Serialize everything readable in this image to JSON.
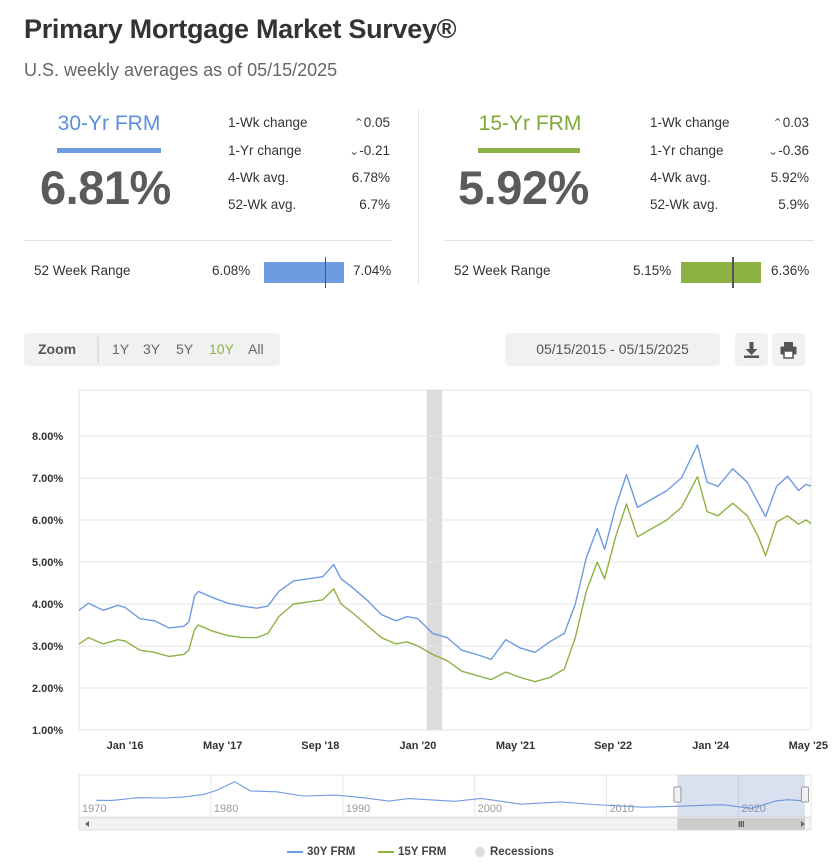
{
  "header": {
    "title": "Primary Mortgage Market Survey®",
    "subtitle": "U.S. weekly averages as of 05/15/2025"
  },
  "colors": {
    "frm30": "#6f9be0",
    "frm15": "#8db244",
    "recession": "#dcdcdc"
  },
  "frm30": {
    "label": "30-Yr FRM",
    "rate": "6.81%",
    "one_wk_change_label": "1-Wk change",
    "one_wk_change": "0.05",
    "one_wk_direction": "up",
    "one_yr_change_label": "1-Yr change",
    "one_yr_change": "-0.21",
    "one_yr_direction": "down",
    "four_wk_label": "4-Wk avg.",
    "four_wk": "6.78%",
    "fifty_two_wk_label": "52-Wk avg.",
    "fifty_two_wk": "6.7%",
    "range_label": "52 Week Range",
    "range_low": "6.08%",
    "range_high": "7.04%",
    "range_current_fraction": 0.76
  },
  "frm15": {
    "label": "15-Yr FRM",
    "rate": "5.92%",
    "one_wk_change_label": "1-Wk change",
    "one_wk_change": "0.03",
    "one_wk_direction": "up",
    "one_yr_change_label": "1-Yr change",
    "one_yr_change": "-0.36",
    "one_yr_direction": "down",
    "four_wk_label": "4-Wk avg.",
    "four_wk": "5.92%",
    "fifty_two_wk_label": "52-Wk avg.",
    "fifty_two_wk": "5.9%",
    "range_label": "52 Week Range",
    "range_low": "5.15%",
    "range_high": "6.36%",
    "range_current_fraction": 0.64
  },
  "toolbar": {
    "zoom_label": "Zoom",
    "zoom_options": [
      "1Y",
      "3Y",
      "5Y",
      "10Y",
      "All"
    ],
    "zoom_selected": "10Y",
    "date_range": "05/15/2015 - 05/15/2025",
    "download_icon": "download-icon",
    "print_icon": "print-icon"
  },
  "chart_data": {
    "type": "line",
    "x_start": "2015-05",
    "x_end": "2025-05",
    "y_tick_labels": [
      "1.00%",
      "2.00%",
      "3.00%",
      "4.00%",
      "5.00%",
      "6.00%",
      "7.00%",
      "8.00%"
    ],
    "y_ticks": [
      1,
      2,
      3,
      4,
      5,
      6,
      7,
      8
    ],
    "ylim": [
      1,
      9
    ],
    "x_tick_labels": [
      "Jan '16",
      "May '17",
      "Sep '18",
      "Jan '20",
      "May '21",
      "Sep '22",
      "Jan '24",
      "May '25"
    ],
    "x_ticks": [
      2016.0,
      2017.333,
      2018.667,
      2020.0,
      2021.333,
      2022.667,
      2024.0,
      2025.333
    ],
    "grid": true,
    "legend_position": "bottom",
    "recessions": [
      {
        "start": 2020.12,
        "end": 2020.33
      }
    ],
    "series": [
      {
        "name": "30Y FRM",
        "points": [
          [
            2015.37,
            3.85
          ],
          [
            2015.5,
            4.02
          ],
          [
            2015.7,
            3.85
          ],
          [
            2015.9,
            3.97
          ],
          [
            2016.0,
            3.92
          ],
          [
            2016.2,
            3.65
          ],
          [
            2016.4,
            3.6
          ],
          [
            2016.6,
            3.43
          ],
          [
            2016.8,
            3.47
          ],
          [
            2016.87,
            3.57
          ],
          [
            2016.95,
            4.2
          ],
          [
            2017.0,
            4.3
          ],
          [
            2017.2,
            4.15
          ],
          [
            2017.4,
            4.02
          ],
          [
            2017.6,
            3.95
          ],
          [
            2017.8,
            3.9
          ],
          [
            2017.95,
            3.95
          ],
          [
            2018.1,
            4.3
          ],
          [
            2018.3,
            4.55
          ],
          [
            2018.5,
            4.6
          ],
          [
            2018.7,
            4.65
          ],
          [
            2018.85,
            4.94
          ],
          [
            2018.95,
            4.6
          ],
          [
            2019.1,
            4.4
          ],
          [
            2019.3,
            4.1
          ],
          [
            2019.5,
            3.75
          ],
          [
            2019.7,
            3.6
          ],
          [
            2019.85,
            3.7
          ],
          [
            2020.0,
            3.65
          ],
          [
            2020.2,
            3.3
          ],
          [
            2020.4,
            3.2
          ],
          [
            2020.6,
            2.9
          ],
          [
            2020.8,
            2.8
          ],
          [
            2021.0,
            2.68
          ],
          [
            2021.2,
            3.15
          ],
          [
            2021.4,
            2.95
          ],
          [
            2021.6,
            2.85
          ],
          [
            2021.8,
            3.1
          ],
          [
            2022.0,
            3.3
          ],
          [
            2022.15,
            4.0
          ],
          [
            2022.3,
            5.1
          ],
          [
            2022.45,
            5.8
          ],
          [
            2022.55,
            5.3
          ],
          [
            2022.7,
            6.3
          ],
          [
            2022.85,
            7.08
          ],
          [
            2023.0,
            6.3
          ],
          [
            2023.2,
            6.5
          ],
          [
            2023.4,
            6.7
          ],
          [
            2023.6,
            7.0
          ],
          [
            2023.82,
            7.79
          ],
          [
            2023.95,
            6.9
          ],
          [
            2024.1,
            6.8
          ],
          [
            2024.3,
            7.22
          ],
          [
            2024.5,
            6.9
          ],
          [
            2024.65,
            6.4
          ],
          [
            2024.75,
            6.08
          ],
          [
            2024.9,
            6.8
          ],
          [
            2025.05,
            7.04
          ],
          [
            2025.2,
            6.7
          ],
          [
            2025.3,
            6.85
          ],
          [
            2025.37,
            6.81
          ]
        ]
      },
      {
        "name": "15Y FRM",
        "points": [
          [
            2015.37,
            3.05
          ],
          [
            2015.5,
            3.2
          ],
          [
            2015.7,
            3.05
          ],
          [
            2015.9,
            3.15
          ],
          [
            2016.0,
            3.12
          ],
          [
            2016.2,
            2.9
          ],
          [
            2016.4,
            2.85
          ],
          [
            2016.6,
            2.75
          ],
          [
            2016.8,
            2.8
          ],
          [
            2016.87,
            2.9
          ],
          [
            2016.95,
            3.4
          ],
          [
            2017.0,
            3.5
          ],
          [
            2017.2,
            3.35
          ],
          [
            2017.4,
            3.25
          ],
          [
            2017.6,
            3.2
          ],
          [
            2017.8,
            3.2
          ],
          [
            2017.95,
            3.3
          ],
          [
            2018.1,
            3.7
          ],
          [
            2018.3,
            4.0
          ],
          [
            2018.5,
            4.05
          ],
          [
            2018.7,
            4.1
          ],
          [
            2018.85,
            4.36
          ],
          [
            2018.95,
            4.0
          ],
          [
            2019.1,
            3.8
          ],
          [
            2019.3,
            3.5
          ],
          [
            2019.5,
            3.2
          ],
          [
            2019.7,
            3.05
          ],
          [
            2019.85,
            3.1
          ],
          [
            2020.0,
            3.0
          ],
          [
            2020.2,
            2.8
          ],
          [
            2020.4,
            2.65
          ],
          [
            2020.6,
            2.4
          ],
          [
            2020.8,
            2.3
          ],
          [
            2021.0,
            2.2
          ],
          [
            2021.2,
            2.38
          ],
          [
            2021.4,
            2.25
          ],
          [
            2021.6,
            2.15
          ],
          [
            2021.8,
            2.25
          ],
          [
            2022.0,
            2.45
          ],
          [
            2022.15,
            3.2
          ],
          [
            2022.3,
            4.3
          ],
          [
            2022.45,
            5.0
          ],
          [
            2022.55,
            4.6
          ],
          [
            2022.7,
            5.6
          ],
          [
            2022.85,
            6.38
          ],
          [
            2023.0,
            5.6
          ],
          [
            2023.2,
            5.8
          ],
          [
            2023.4,
            6.0
          ],
          [
            2023.6,
            6.3
          ],
          [
            2023.82,
            7.03
          ],
          [
            2023.95,
            6.2
          ],
          [
            2024.1,
            6.1
          ],
          [
            2024.3,
            6.4
          ],
          [
            2024.5,
            6.1
          ],
          [
            2024.65,
            5.6
          ],
          [
            2024.75,
            5.15
          ],
          [
            2024.9,
            5.95
          ],
          [
            2025.05,
            6.1
          ],
          [
            2025.2,
            5.9
          ],
          [
            2025.3,
            6.0
          ],
          [
            2025.37,
            5.92
          ]
        ]
      }
    ]
  },
  "navigator": {
    "year_labels": [
      "1970",
      "1980",
      "1990",
      "2000",
      "2010",
      "2020"
    ],
    "year_ticks": [
      1970,
      1980,
      1990,
      2000,
      2010,
      2020
    ],
    "range_years": [
      1970,
      2025.5
    ],
    "selected_range": [
      2015.37,
      2025.37
    ],
    "handle_icon": "grip-icon",
    "points": [
      [
        1971.3,
        7.5
      ],
      [
        1972.5,
        7.4
      ],
      [
        1974.5,
        9.0
      ],
      [
        1976.5,
        8.8
      ],
      [
        1978.0,
        9.5
      ],
      [
        1979.5,
        11.0
      ],
      [
        1980.5,
        13.5
      ],
      [
        1981.8,
        18.4
      ],
      [
        1983.0,
        13.0
      ],
      [
        1985.0,
        12.5
      ],
      [
        1987.0,
        10.0
      ],
      [
        1989.5,
        10.5
      ],
      [
        1991.5,
        9.0
      ],
      [
        1993.5,
        7.0
      ],
      [
        1995.0,
        8.5
      ],
      [
        1998.5,
        6.9
      ],
      [
        2000.5,
        8.6
      ],
      [
        2003.5,
        5.2
      ],
      [
        2006.5,
        6.5
      ],
      [
        2009.0,
        5.0
      ],
      [
        2012.8,
        3.4
      ],
      [
        2015.0,
        3.9
      ],
      [
        2018.8,
        4.9
      ],
      [
        2021.0,
        2.7
      ],
      [
        2022.85,
        7.1
      ],
      [
        2023.8,
        7.8
      ],
      [
        2025.37,
        6.8
      ]
    ]
  },
  "legend": {
    "frm30_label": "30Y FRM",
    "frm15_label": "15Y FRM",
    "recession_label": "Recessions"
  }
}
